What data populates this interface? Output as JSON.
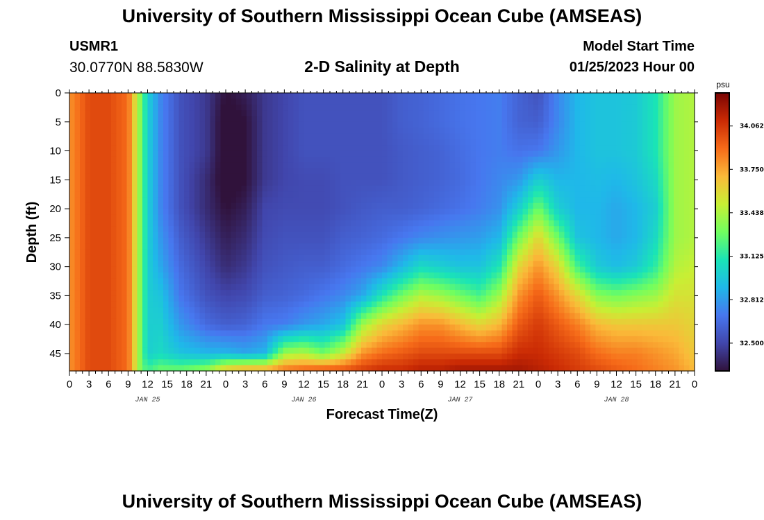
{
  "header": {
    "title": "University of Southern Mississippi Ocean Cube (AMSEAS)",
    "station_id": "USMR1",
    "station_coords": "30.0770N  88.5830W",
    "chart_title": "2-D Salinity at Depth",
    "model_label": "Model Start Time",
    "model_time": "01/25/2023 Hour 00"
  },
  "footer": {
    "title": "University of Southern Mississippi Ocean Cube (AMSEAS)"
  },
  "chart_data": {
    "type": "heatmap",
    "title": "2-D Salinity at Depth",
    "xlabel": "Forecast Time(Z)",
    "ylabel": "Depth (ft)",
    "x_range_hours": [
      0,
      96
    ],
    "x_tick_step_hours": 3,
    "x_tick_labels": [
      "0",
      "3",
      "6",
      "9",
      "12",
      "15",
      "18",
      "21",
      "0",
      "3",
      "6",
      "9",
      "12",
      "15",
      "18",
      "21",
      "0",
      "3",
      "6",
      "9",
      "12",
      "15",
      "18",
      "21",
      "0",
      "3",
      "6",
      "9",
      "12",
      "15",
      "18",
      "21",
      "0"
    ],
    "date_labels": [
      {
        "label": "JAN 25",
        "hour": 12
      },
      {
        "label": "JAN 26",
        "hour": 36
      },
      {
        "label": "JAN 27",
        "hour": 60
      },
      {
        "label": "JAN 28",
        "hour": 84
      }
    ],
    "y_range_ft": [
      0,
      48
    ],
    "y_ticks": [
      "0",
      "5",
      "10",
      "15",
      "20",
      "25",
      "30",
      "35",
      "40",
      "45"
    ],
    "colorbar": {
      "unit": "psu",
      "range": [
        32.3,
        34.3
      ],
      "ticks": [
        "32.500",
        "32.812",
        "33.125",
        "33.438",
        "33.750",
        "34.062"
      ]
    },
    "column_hours": [
      0,
      3,
      6,
      9,
      10,
      11,
      12,
      14,
      17,
      21,
      24,
      27,
      30,
      33,
      36,
      39,
      42,
      45,
      48,
      51,
      54,
      57,
      60,
      63,
      66,
      69,
      72,
      75,
      78,
      81,
      84,
      87,
      90,
      93,
      96
    ],
    "depth_levels_ft": [
      0,
      5,
      10,
      15,
      20,
      25,
      30,
      35,
      40,
      45,
      48
    ],
    "salinity_psu": [
      [
        33.8,
        33.8,
        33.8,
        33.8,
        33.8,
        33.8,
        33.8,
        33.8,
        33.8,
        33.8,
        33.8
      ],
      [
        34.0,
        34.0,
        34.0,
        34.0,
        34.0,
        34.0,
        34.0,
        34.0,
        34.0,
        34.0,
        34.0
      ],
      [
        34.0,
        34.0,
        34.0,
        34.0,
        34.0,
        34.0,
        34.0,
        34.0,
        34.0,
        34.0,
        34.0
      ],
      [
        33.9,
        33.9,
        33.9,
        33.9,
        33.9,
        33.9,
        33.9,
        33.9,
        33.9,
        33.9,
        33.9
      ],
      [
        33.6,
        33.6,
        33.6,
        33.6,
        33.6,
        33.6,
        33.6,
        33.6,
        33.6,
        33.6,
        33.6
      ],
      [
        33.3,
        33.3,
        33.3,
        33.3,
        33.3,
        33.3,
        33.3,
        33.3,
        33.3,
        33.3,
        33.3
      ],
      [
        33.0,
        33.0,
        33.0,
        33.0,
        33.0,
        33.0,
        33.0,
        33.0,
        33.0,
        33.0,
        33.2
      ],
      [
        32.75,
        32.75,
        32.75,
        32.75,
        32.75,
        32.8,
        32.85,
        32.95,
        33.0,
        33.05,
        33.3
      ],
      [
        32.55,
        32.55,
        32.55,
        32.55,
        32.55,
        32.6,
        32.65,
        32.7,
        32.8,
        32.95,
        33.3
      ],
      [
        32.45,
        32.45,
        32.45,
        32.4,
        32.4,
        32.45,
        32.5,
        32.55,
        32.65,
        32.9,
        33.4
      ],
      [
        32.3,
        32.25,
        32.25,
        32.25,
        32.3,
        32.35,
        32.4,
        32.5,
        32.6,
        32.9,
        33.7
      ],
      [
        32.35,
        32.3,
        32.3,
        32.3,
        32.35,
        32.4,
        32.45,
        32.52,
        32.62,
        32.85,
        33.8
      ],
      [
        32.45,
        32.45,
        32.45,
        32.45,
        32.5,
        32.52,
        32.55,
        32.6,
        32.7,
        32.9,
        33.8
      ],
      [
        32.5,
        32.5,
        32.5,
        32.5,
        32.52,
        32.55,
        32.58,
        32.62,
        32.72,
        33.4,
        33.9
      ],
      [
        32.55,
        32.55,
        32.55,
        32.52,
        32.52,
        32.55,
        32.6,
        32.65,
        32.8,
        33.45,
        33.95
      ],
      [
        32.55,
        32.55,
        32.55,
        32.52,
        32.52,
        32.55,
        32.6,
        32.7,
        32.85,
        33.3,
        34.0
      ],
      [
        32.55,
        32.55,
        32.55,
        32.55,
        32.55,
        32.6,
        32.65,
        32.75,
        32.95,
        33.5,
        34.0
      ],
      [
        32.55,
        32.55,
        32.55,
        32.55,
        32.58,
        32.62,
        32.7,
        32.85,
        33.4,
        33.8,
        34.05
      ],
      [
        32.55,
        32.55,
        32.55,
        32.55,
        32.6,
        32.65,
        32.75,
        33.1,
        33.6,
        33.9,
        34.1
      ],
      [
        32.6,
        32.6,
        32.58,
        32.58,
        32.6,
        32.7,
        32.9,
        33.3,
        33.7,
        33.95,
        34.1
      ],
      [
        32.62,
        32.62,
        32.6,
        32.6,
        32.62,
        32.75,
        33.05,
        33.45,
        33.8,
        34.0,
        34.15
      ],
      [
        32.65,
        32.65,
        32.62,
        32.62,
        32.65,
        32.78,
        33.0,
        33.4,
        33.8,
        34.0,
        34.15
      ],
      [
        32.68,
        32.68,
        32.66,
        32.65,
        32.68,
        32.8,
        32.95,
        33.3,
        33.7,
        34.0,
        34.2
      ],
      [
        32.7,
        32.7,
        32.7,
        32.7,
        32.72,
        32.82,
        32.95,
        33.2,
        33.6,
        34.0,
        34.2
      ],
      [
        32.72,
        32.72,
        32.72,
        32.75,
        32.78,
        32.9,
        33.1,
        33.4,
        33.7,
        34.0,
        34.2
      ],
      [
        32.62,
        32.62,
        32.68,
        32.8,
        33.0,
        33.3,
        33.6,
        33.8,
        33.95,
        34.1,
        34.2
      ],
      [
        32.55,
        32.6,
        32.7,
        33.0,
        33.3,
        33.6,
        33.8,
        33.95,
        34.05,
        34.1,
        34.15
      ],
      [
        32.75,
        32.75,
        32.8,
        32.9,
        33.0,
        33.3,
        33.6,
        33.8,
        33.95,
        34.05,
        34.1
      ],
      [
        32.9,
        32.9,
        32.9,
        32.9,
        32.9,
        32.95,
        33.2,
        33.6,
        33.85,
        34.0,
        34.05
      ],
      [
        32.95,
        32.95,
        32.95,
        32.92,
        32.9,
        32.9,
        32.98,
        33.35,
        33.7,
        33.9,
        34.0
      ],
      [
        32.95,
        32.95,
        32.95,
        32.9,
        32.85,
        32.85,
        32.92,
        33.3,
        33.65,
        33.85,
        33.95
      ],
      [
        32.98,
        32.98,
        32.98,
        32.95,
        32.9,
        32.9,
        32.98,
        33.35,
        33.65,
        33.85,
        33.9
      ],
      [
        33.1,
        33.1,
        33.1,
        33.05,
        33.0,
        33.05,
        33.15,
        33.4,
        33.65,
        33.8,
        33.85
      ],
      [
        33.4,
        33.4,
        33.4,
        33.4,
        33.4,
        33.4,
        33.45,
        33.55,
        33.65,
        33.75,
        33.8
      ],
      [
        33.45,
        33.45,
        33.45,
        33.45,
        33.45,
        33.45,
        33.5,
        33.55,
        33.6,
        33.65,
        33.7
      ]
    ],
    "colors": [
      "#30123b",
      "#4146ac",
      "#4777ef",
      "#1fb8e9",
      "#1ae4b6",
      "#71fe5f",
      "#c8ef34",
      "#faba39",
      "#f66b19",
      "#ca2a04",
      "#7a0403"
    ]
  }
}
